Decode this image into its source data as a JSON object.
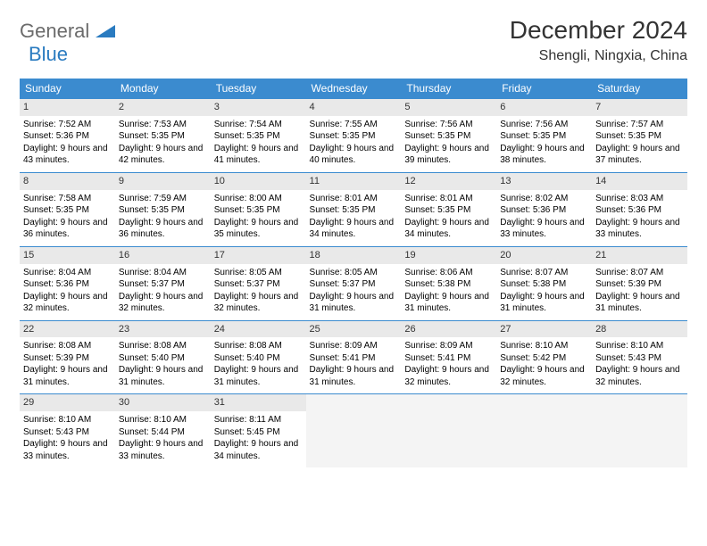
{
  "brand": {
    "word1": "General",
    "word2": "Blue"
  },
  "title": "December 2024",
  "location": "Shengli, Ningxia, China",
  "colors": {
    "header_bg": "#3b8bcf",
    "header_text": "#ffffff",
    "daynum_bg": "#e9e9e9",
    "border": "#3b8bcf",
    "logo_gray": "#6b6b6b",
    "logo_blue": "#2a7bc0",
    "page_bg": "#ffffff"
  },
  "typography": {
    "title_fontsize": 28,
    "location_fontsize": 16,
    "header_fontsize": 12,
    "cell_fontsize": 10
  },
  "weekdays": [
    "Sunday",
    "Monday",
    "Tuesday",
    "Wednesday",
    "Thursday",
    "Friday",
    "Saturday"
  ],
  "weeks": [
    [
      {
        "day": "1",
        "sunrise": "Sunrise: 7:52 AM",
        "sunset": "Sunset: 5:36 PM",
        "daylight": "Daylight: 9 hours and 43 minutes."
      },
      {
        "day": "2",
        "sunrise": "Sunrise: 7:53 AM",
        "sunset": "Sunset: 5:35 PM",
        "daylight": "Daylight: 9 hours and 42 minutes."
      },
      {
        "day": "3",
        "sunrise": "Sunrise: 7:54 AM",
        "sunset": "Sunset: 5:35 PM",
        "daylight": "Daylight: 9 hours and 41 minutes."
      },
      {
        "day": "4",
        "sunrise": "Sunrise: 7:55 AM",
        "sunset": "Sunset: 5:35 PM",
        "daylight": "Daylight: 9 hours and 40 minutes."
      },
      {
        "day": "5",
        "sunrise": "Sunrise: 7:56 AM",
        "sunset": "Sunset: 5:35 PM",
        "daylight": "Daylight: 9 hours and 39 minutes."
      },
      {
        "day": "6",
        "sunrise": "Sunrise: 7:56 AM",
        "sunset": "Sunset: 5:35 PM",
        "daylight": "Daylight: 9 hours and 38 minutes."
      },
      {
        "day": "7",
        "sunrise": "Sunrise: 7:57 AM",
        "sunset": "Sunset: 5:35 PM",
        "daylight": "Daylight: 9 hours and 37 minutes."
      }
    ],
    [
      {
        "day": "8",
        "sunrise": "Sunrise: 7:58 AM",
        "sunset": "Sunset: 5:35 PM",
        "daylight": "Daylight: 9 hours and 36 minutes."
      },
      {
        "day": "9",
        "sunrise": "Sunrise: 7:59 AM",
        "sunset": "Sunset: 5:35 PM",
        "daylight": "Daylight: 9 hours and 36 minutes."
      },
      {
        "day": "10",
        "sunrise": "Sunrise: 8:00 AM",
        "sunset": "Sunset: 5:35 PM",
        "daylight": "Daylight: 9 hours and 35 minutes."
      },
      {
        "day": "11",
        "sunrise": "Sunrise: 8:01 AM",
        "sunset": "Sunset: 5:35 PM",
        "daylight": "Daylight: 9 hours and 34 minutes."
      },
      {
        "day": "12",
        "sunrise": "Sunrise: 8:01 AM",
        "sunset": "Sunset: 5:35 PM",
        "daylight": "Daylight: 9 hours and 34 minutes."
      },
      {
        "day": "13",
        "sunrise": "Sunrise: 8:02 AM",
        "sunset": "Sunset: 5:36 PM",
        "daylight": "Daylight: 9 hours and 33 minutes."
      },
      {
        "day": "14",
        "sunrise": "Sunrise: 8:03 AM",
        "sunset": "Sunset: 5:36 PM",
        "daylight": "Daylight: 9 hours and 33 minutes."
      }
    ],
    [
      {
        "day": "15",
        "sunrise": "Sunrise: 8:04 AM",
        "sunset": "Sunset: 5:36 PM",
        "daylight": "Daylight: 9 hours and 32 minutes."
      },
      {
        "day": "16",
        "sunrise": "Sunrise: 8:04 AM",
        "sunset": "Sunset: 5:37 PM",
        "daylight": "Daylight: 9 hours and 32 minutes."
      },
      {
        "day": "17",
        "sunrise": "Sunrise: 8:05 AM",
        "sunset": "Sunset: 5:37 PM",
        "daylight": "Daylight: 9 hours and 32 minutes."
      },
      {
        "day": "18",
        "sunrise": "Sunrise: 8:05 AM",
        "sunset": "Sunset: 5:37 PM",
        "daylight": "Daylight: 9 hours and 31 minutes."
      },
      {
        "day": "19",
        "sunrise": "Sunrise: 8:06 AM",
        "sunset": "Sunset: 5:38 PM",
        "daylight": "Daylight: 9 hours and 31 minutes."
      },
      {
        "day": "20",
        "sunrise": "Sunrise: 8:07 AM",
        "sunset": "Sunset: 5:38 PM",
        "daylight": "Daylight: 9 hours and 31 minutes."
      },
      {
        "day": "21",
        "sunrise": "Sunrise: 8:07 AM",
        "sunset": "Sunset: 5:39 PM",
        "daylight": "Daylight: 9 hours and 31 minutes."
      }
    ],
    [
      {
        "day": "22",
        "sunrise": "Sunrise: 8:08 AM",
        "sunset": "Sunset: 5:39 PM",
        "daylight": "Daylight: 9 hours and 31 minutes."
      },
      {
        "day": "23",
        "sunrise": "Sunrise: 8:08 AM",
        "sunset": "Sunset: 5:40 PM",
        "daylight": "Daylight: 9 hours and 31 minutes."
      },
      {
        "day": "24",
        "sunrise": "Sunrise: 8:08 AM",
        "sunset": "Sunset: 5:40 PM",
        "daylight": "Daylight: 9 hours and 31 minutes."
      },
      {
        "day": "25",
        "sunrise": "Sunrise: 8:09 AM",
        "sunset": "Sunset: 5:41 PM",
        "daylight": "Daylight: 9 hours and 31 minutes."
      },
      {
        "day": "26",
        "sunrise": "Sunrise: 8:09 AM",
        "sunset": "Sunset: 5:41 PM",
        "daylight": "Daylight: 9 hours and 32 minutes."
      },
      {
        "day": "27",
        "sunrise": "Sunrise: 8:10 AM",
        "sunset": "Sunset: 5:42 PM",
        "daylight": "Daylight: 9 hours and 32 minutes."
      },
      {
        "day": "28",
        "sunrise": "Sunrise: 8:10 AM",
        "sunset": "Sunset: 5:43 PM",
        "daylight": "Daylight: 9 hours and 32 minutes."
      }
    ],
    [
      {
        "day": "29",
        "sunrise": "Sunrise: 8:10 AM",
        "sunset": "Sunset: 5:43 PM",
        "daylight": "Daylight: 9 hours and 33 minutes."
      },
      {
        "day": "30",
        "sunrise": "Sunrise: 8:10 AM",
        "sunset": "Sunset: 5:44 PM",
        "daylight": "Daylight: 9 hours and 33 minutes."
      },
      {
        "day": "31",
        "sunrise": "Sunrise: 8:11 AM",
        "sunset": "Sunset: 5:45 PM",
        "daylight": "Daylight: 9 hours and 34 minutes."
      },
      null,
      null,
      null,
      null
    ]
  ]
}
